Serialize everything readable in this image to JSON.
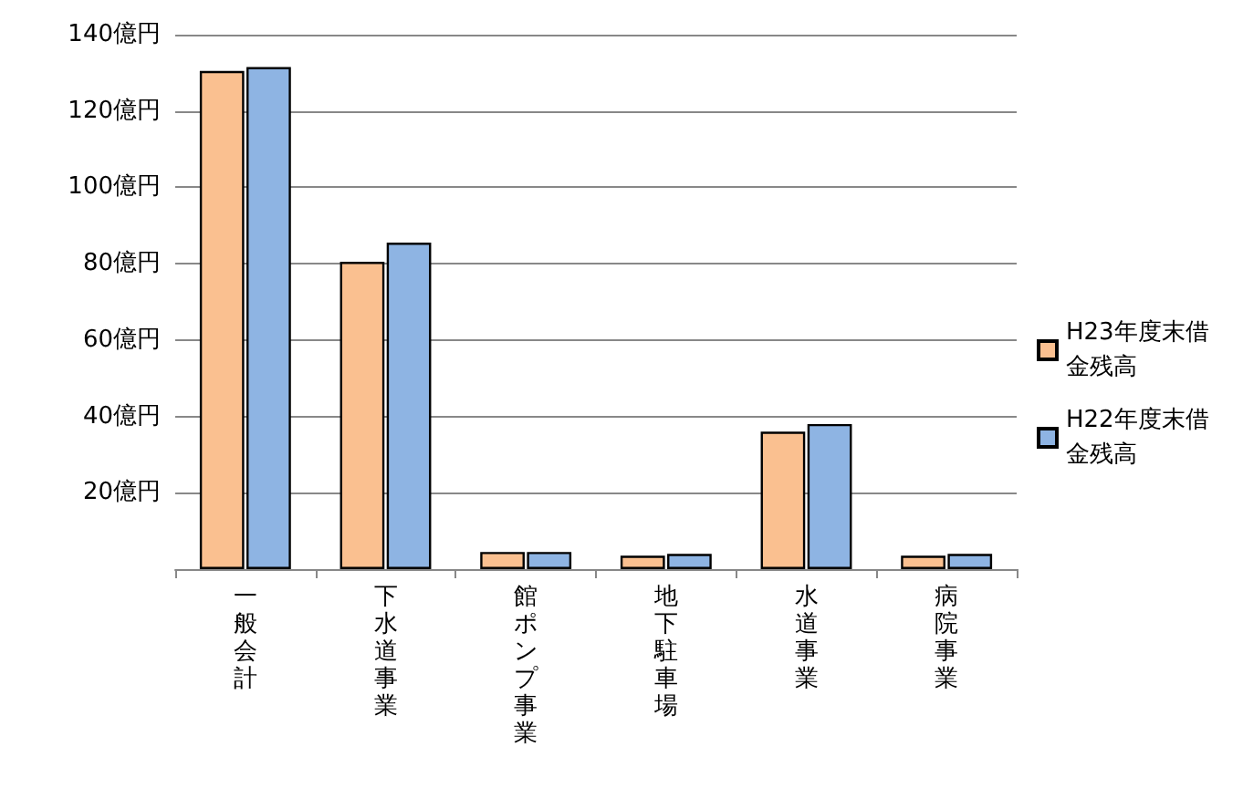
{
  "chart_data": {
    "type": "bar",
    "categories": [
      "一般会計",
      "下水道事業",
      "館ポンプ事業",
      "地下駐車場",
      "水道事業",
      "病院事業"
    ],
    "series": [
      {
        "name": "H23年度末借金残高",
        "color": "#fac090",
        "values": [
          130.5,
          80.5,
          4.5,
          3.5,
          36,
          3.5
        ]
      },
      {
        "name": "H22年度末借金残高",
        "color": "#8eb4e3",
        "values": [
          131.5,
          85.5,
          4.5,
          4,
          38,
          4
        ]
      }
    ],
    "ylim": [
      0,
      140
    ],
    "yticks": [
      {
        "value": 0,
        "label": null
      },
      {
        "value": 20,
        "label": "20億円"
      },
      {
        "value": 40,
        "label": "40億円"
      },
      {
        "value": 60,
        "label": "60億円"
      },
      {
        "value": 80,
        "label": "80億円"
      },
      {
        "value": 100,
        "label": "100億円"
      },
      {
        "value": 120,
        "label": "120億円"
      },
      {
        "value": 140,
        "label": "140億円"
      }
    ],
    "grid": "y",
    "legend": "right"
  }
}
